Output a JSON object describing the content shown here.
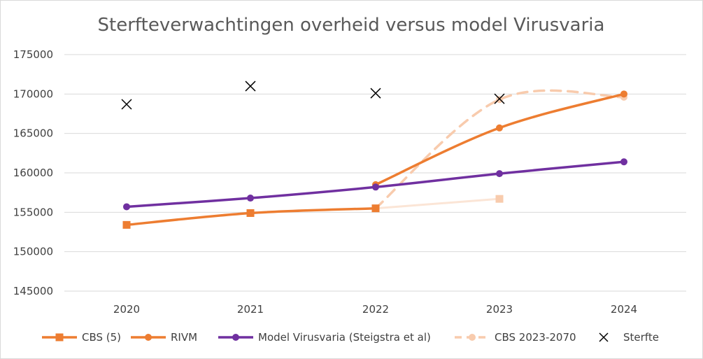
{
  "chart_data": {
    "type": "line",
    "title": "Sterfteverwachtingen overheid versus model Virusvaria",
    "xlabel": "",
    "ylabel": "",
    "categories": [
      "2020",
      "2021",
      "2022",
      "2023",
      "2024"
    ],
    "ylim": [
      145000,
      175000
    ],
    "yticks": [
      145000,
      150000,
      155000,
      160000,
      165000,
      170000,
      175000
    ],
    "grid": true,
    "legend_position": "bottom",
    "series": [
      {
        "name": "CBS (5)",
        "kind": "line",
        "marker": "square",
        "color": "#ED7D31",
        "values": [
          153400,
          154900,
          155500,
          null,
          null
        ]
      },
      {
        "name": "RIVM",
        "kind": "line",
        "marker": "circle",
        "color": "#ED7D31",
        "values": [
          null,
          null,
          158500,
          165700,
          170000
        ]
      },
      {
        "name": "Model Virusvaria (Steigstra et al)",
        "kind": "line",
        "marker": "circle",
        "color": "#7030A0",
        "values": [
          155700,
          156800,
          158200,
          159900,
          161400
        ]
      },
      {
        "name": "CBS 2023-2070",
        "kind": "dashed",
        "marker": "circle",
        "color": "#F8CBAD",
        "values": [
          null,
          null,
          155500,
          169300,
          169600
        ]
      },
      {
        "name": "Sterfte",
        "kind": "markers",
        "marker": "x",
        "color": "#000000",
        "values": [
          168700,
          171000,
          170100,
          169400,
          null
        ]
      }
    ],
    "extra_points": [
      {
        "series": "CBS (5)",
        "category": "2023",
        "value": 156700,
        "color": "#FBE5D6",
        "note": ""
      }
    ]
  }
}
